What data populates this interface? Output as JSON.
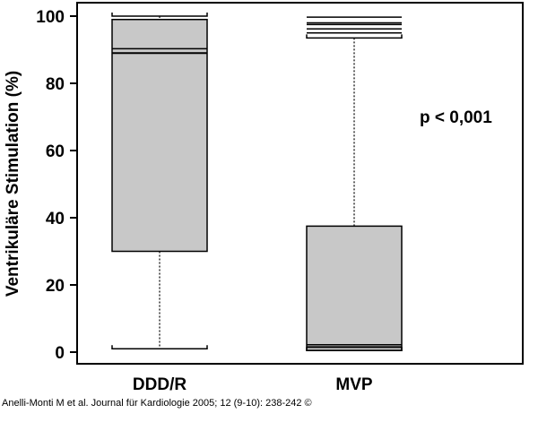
{
  "chart_data": {
    "type": "box",
    "categories": [
      "DDD/R",
      "MVP"
    ],
    "ylabel": "Ventrikuläre Stimulation (%)",
    "xlabel": "",
    "ylim": [
      0,
      100
    ],
    "yticks": [
      0,
      20,
      40,
      60,
      80,
      100
    ],
    "boxes": [
      {
        "category": "DDD/R",
        "whisker_low": 1,
        "q1": 30,
        "median": 89,
        "q3": 99,
        "whisker_high": 100,
        "extra_lines": [
          90.3
        ]
      },
      {
        "category": "MVP",
        "whisker_low": 0.5,
        "q1": 0.5,
        "median": 1.5,
        "q3": 37.5,
        "whisker_high": 93.5,
        "extra_lines": [
          2.2,
          95,
          96.2,
          97.5,
          98,
          99.7
        ]
      }
    ],
    "annotation": "p < 0,001"
  },
  "citation": {
    "text": "Anelli-Monti M et al. Journal für Kardiologie 2005; 12 (9-10): 238-242 ©"
  },
  "colors": {
    "box_fill": "#c8c8c8",
    "stroke": "#000000",
    "background": "#ffffff"
  }
}
